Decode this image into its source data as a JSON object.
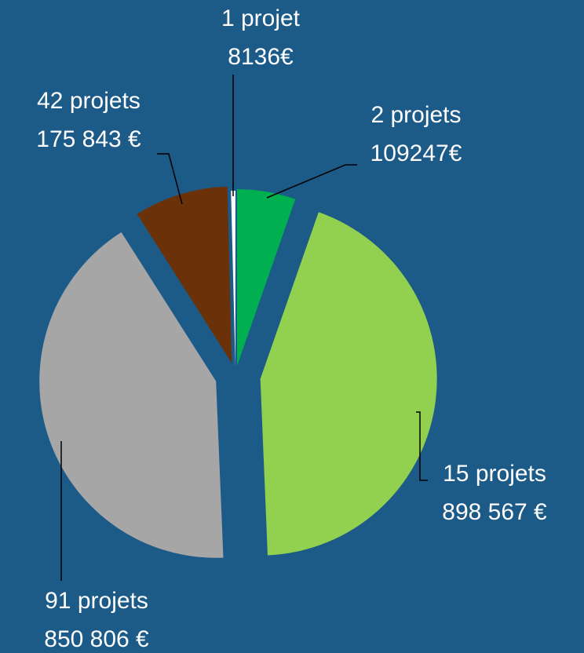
{
  "chart_data": {
    "type": "pie",
    "categories": [
      "2 projets",
      "15 projets",
      "91 projets",
      "42 projets",
      "1 projet"
    ],
    "values": [
      109247,
      898567,
      850806,
      175843,
      8136
    ],
    "value_labels": [
      "109247€",
      "898 567 €",
      "850 806 €",
      "175 843 €",
      "8136€"
    ],
    "colors": [
      "#00b050",
      "#92d050",
      "#a6a6a6",
      "#6b3108",
      "#ffffff"
    ]
  }
}
